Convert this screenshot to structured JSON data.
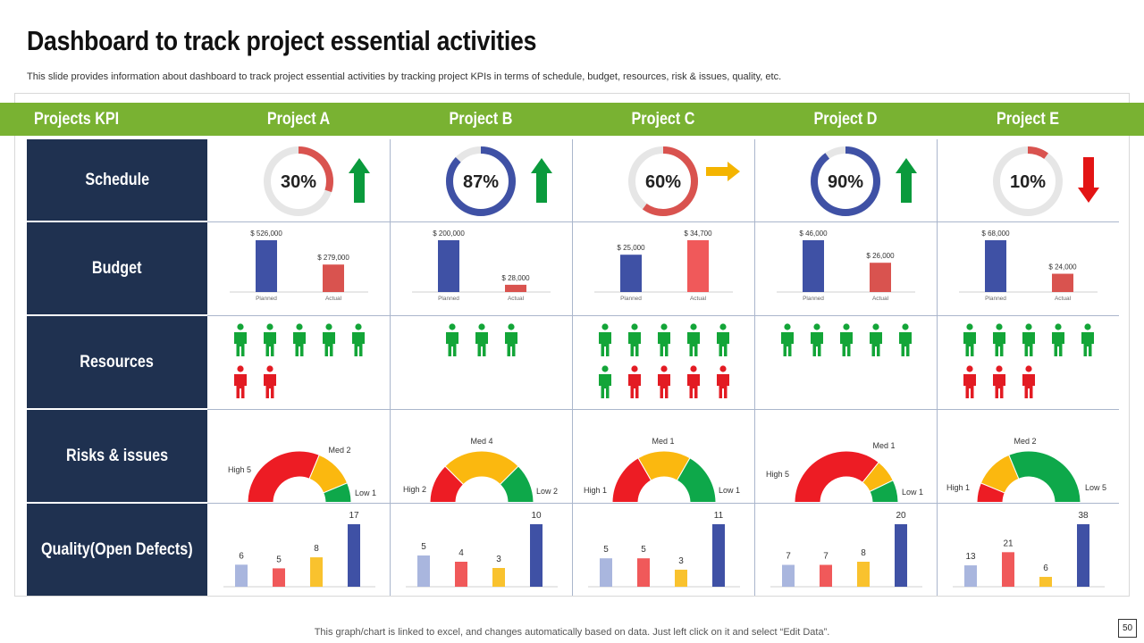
{
  "title": "Dashboard to track project essential activities",
  "subtitle": "This slide provides information about dashboard to track project essential activities by tracking project KPIs in terms of schedule, budget, resources, risk & issues, quality, etc.",
  "header": {
    "kpi_label": "Projects KPI"
  },
  "rows": {
    "schedule": "Schedule",
    "budget": "Budget",
    "resources": "Resources",
    "risks": "Risks & issues",
    "quality": "Quality(Open Defects)"
  },
  "colors": {
    "green_header": "#79b232",
    "navy": "#1f3150",
    "ring_red": "#d9534f",
    "ring_blue": "#3f51a5",
    "up_green": "#0a9a3c",
    "down_red": "#e31414",
    "flat_orange": "#f4b400"
  },
  "chart_data": [
    {
      "type": "table",
      "title": "Schedule",
      "projects": [
        {
          "name": "Project A",
          "percent": 30,
          "label": "30%",
          "trend": "up",
          "ring_color": "red"
        },
        {
          "name": "Project B",
          "percent": 87,
          "label": "87%",
          "trend": "up",
          "ring_color": "blue"
        },
        {
          "name": "Project C",
          "percent": 60,
          "label": "60%",
          "trend": "flat",
          "ring_color": "red"
        },
        {
          "name": "Project D",
          "percent": 90,
          "label": "90%",
          "trend": "up",
          "ring_color": "blue"
        },
        {
          "name": "Project E",
          "percent": 10,
          "label": "10%",
          "trend": "down",
          "ring_color": "red"
        }
      ]
    },
    {
      "type": "bar",
      "title": "Budget",
      "categories": [
        "Planned",
        "Actual"
      ],
      "projects": [
        {
          "name": "Project A",
          "values": [
            526000,
            279000
          ],
          "labels": [
            "$ 526,000",
            "$ 279,000"
          ]
        },
        {
          "name": "Project B",
          "values": [
            200000,
            28000
          ],
          "labels": [
            "$ 200,000",
            "$ 28,000"
          ]
        },
        {
          "name": "Project C",
          "values": [
            25000,
            34700
          ],
          "labels": [
            "$ 25,000",
            "$ 34,700"
          ]
        },
        {
          "name": "Project D",
          "values": [
            46000,
            26000
          ],
          "labels": [
            "$ 46,000",
            "$ 26,000"
          ]
        },
        {
          "name": "Project E",
          "values": [
            68000,
            24000
          ],
          "labels": [
            "$ 68,000",
            "$ 24,000"
          ]
        }
      ]
    },
    {
      "type": "table",
      "title": "Resources",
      "projects": [
        {
          "name": "Project A",
          "green": 5,
          "red": 2
        },
        {
          "name": "Project B",
          "green": 3,
          "red": 0
        },
        {
          "name": "Project C",
          "green": 6,
          "red": 4
        },
        {
          "name": "Project D",
          "green": 5,
          "red": 0
        },
        {
          "name": "Project E",
          "green": 5,
          "red": 3
        }
      ]
    },
    {
      "type": "pie",
      "title": "Risks & issues",
      "categories": [
        "High",
        "Med",
        "Low"
      ],
      "projects": [
        {
          "name": "Project A",
          "values": [
            5,
            2,
            1
          ],
          "labels": [
            "High 5",
            "Med 2",
            "Low 1"
          ]
        },
        {
          "name": "Project B",
          "values": [
            2,
            4,
            2
          ],
          "labels": [
            "High 2",
            "Med 4",
            "Low 2"
          ]
        },
        {
          "name": "Project C",
          "values": [
            1,
            1,
            1
          ],
          "labels": [
            "High 1",
            "Med 1",
            "Low 1"
          ]
        },
        {
          "name": "Project D",
          "values": [
            5,
            1,
            1
          ],
          "labels": [
            "High 5",
            "Med 1",
            "Low 1"
          ]
        },
        {
          "name": "Project E",
          "values": [
            1,
            2,
            5
          ],
          "labels": [
            "High 1",
            "Med 2",
            "Low 5"
          ]
        }
      ]
    },
    {
      "type": "bar",
      "title": "Quality(Open Defects)",
      "projects": [
        {
          "name": "Project A",
          "values": [
            6,
            5,
            8,
            17
          ]
        },
        {
          "name": "Project B",
          "values": [
            5,
            4,
            3,
            10
          ]
        },
        {
          "name": "Project C",
          "values": [
            5,
            5,
            3,
            11
          ]
        },
        {
          "name": "Project D",
          "values": [
            7,
            7,
            8,
            20
          ]
        },
        {
          "name": "Project E",
          "values": [
            13,
            21,
            6,
            38
          ]
        }
      ]
    }
  ],
  "footer": "This graph/chart is linked to excel,  and changes automatically based on data. Just left click on it and select “Edit Data”.",
  "page_number": "50"
}
